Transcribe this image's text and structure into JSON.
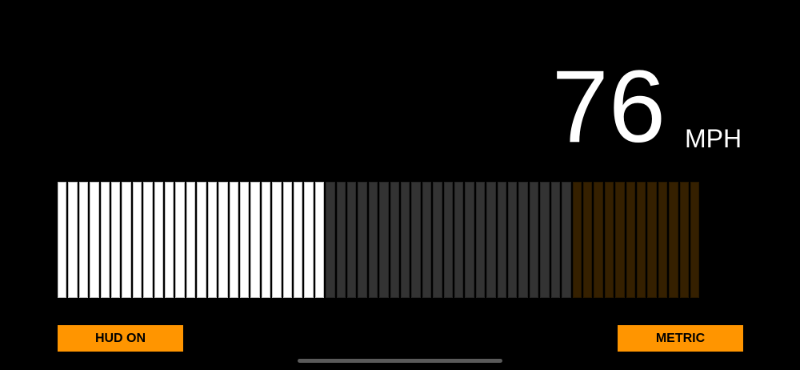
{
  "speed": {
    "value": "76",
    "unit": "MPH"
  },
  "gauge": {
    "total_segments": 60,
    "lit_segments": 25,
    "redline_start_segment": 48,
    "colors": {
      "lit": "#ffffff",
      "unlit": "#333333",
      "redline": "#352000"
    }
  },
  "buttons": {
    "hud": "HUD ON",
    "units": "METRIC"
  },
  "colors": {
    "accent": "#ff9500",
    "background": "#000000"
  }
}
